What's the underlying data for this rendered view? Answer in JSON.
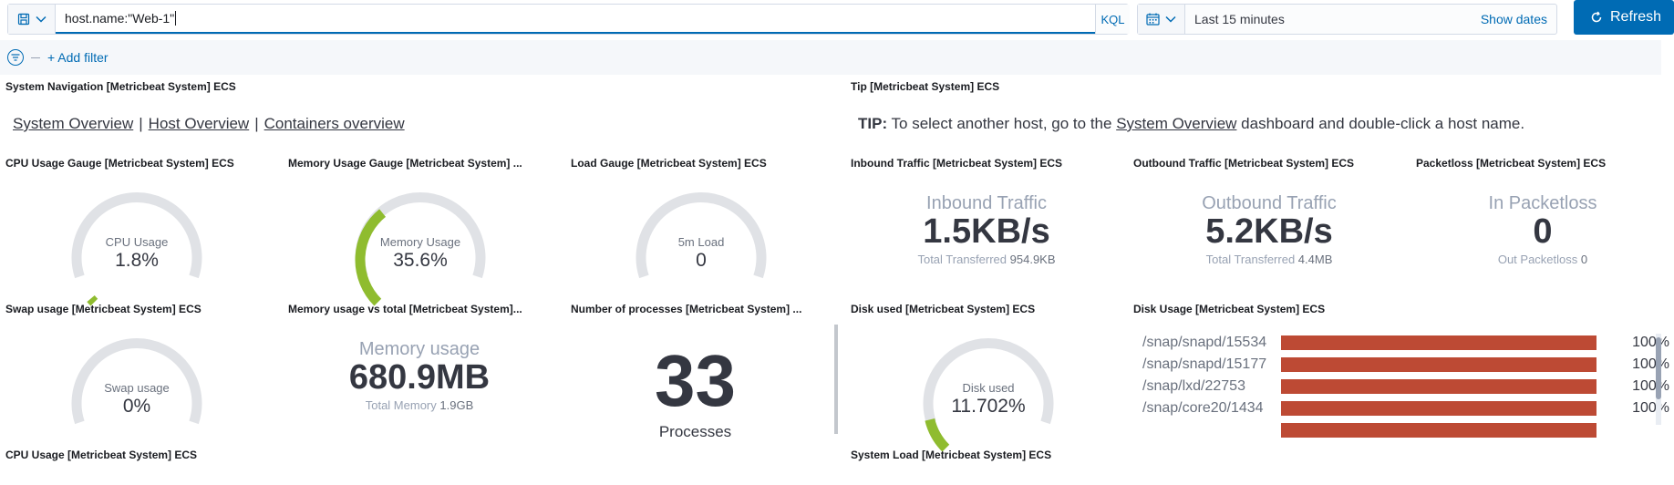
{
  "querybar": {
    "query": "host.name:\"Web-1\"",
    "language_label": "KQL",
    "date_range": "Last 15 minutes",
    "show_dates_label": "Show dates",
    "refresh_label": "Refresh"
  },
  "filterbar": {
    "add_filter_label": "+ Add filter"
  },
  "panels": {
    "nav": {
      "title": "System Navigation [Metricbeat System] ECS",
      "links": [
        "System Overview",
        "Host Overview",
        "Containers overview"
      ],
      "separator": "|"
    },
    "tip": {
      "title": "Tip [Metricbeat System] ECS",
      "prefix": "TIP:",
      "text_before": " To select another host, go to the ",
      "link": "System Overview",
      "text_after": " dashboard and double-click a host name."
    },
    "cpu_gauge": {
      "title": "CPU Usage Gauge [Metricbeat System] ECS",
      "label": "CPU Usage",
      "value": "1.8%",
      "fraction": 0.018
    },
    "mem_gauge": {
      "title": "Memory Usage Gauge [Metricbeat System] ...",
      "label": "Memory Usage",
      "value": "35.6%",
      "fraction": 0.356
    },
    "load_gauge": {
      "title": "Load Gauge [Metricbeat System] ECS",
      "label": "5m Load",
      "value": "0",
      "fraction": 0
    },
    "inbound": {
      "title": "Inbound Traffic [Metricbeat System] ECS",
      "label": "Inbound Traffic",
      "value": "1.5KB/s",
      "sub_label": "Total Transferred",
      "sub_value": "954.9KB"
    },
    "outbound": {
      "title": "Outbound Traffic [Metricbeat System] ECS",
      "label": "Outbound Traffic",
      "value": "5.2KB/s",
      "sub_label": "Total Transferred",
      "sub_value": "4.4MB"
    },
    "packetloss": {
      "title": "Packetloss [Metricbeat System] ECS",
      "label": "In Packetloss",
      "value": "0",
      "sub_label": "Out Packetloss",
      "sub_value": "0"
    },
    "swap_gauge": {
      "title": "Swap usage [Metricbeat System] ECS",
      "label": "Swap usage",
      "value": "0%",
      "fraction": 0
    },
    "mem_total": {
      "title": "Memory usage vs total [Metricbeat System]...",
      "label": "Memory usage",
      "value": "680.9MB",
      "sub_label": "Total Memory",
      "sub_value": "1.9GB"
    },
    "processes": {
      "title": "Number of processes [Metricbeat System] ...",
      "value": "33",
      "label": "Processes"
    },
    "disk_used": {
      "title": "Disk used [Metricbeat System] ECS",
      "label": "Disk used",
      "value": "11.702%",
      "fraction": 0.117
    },
    "disk_usage": {
      "title": "Disk Usage [Metricbeat System] ECS",
      "rows": [
        {
          "path": "/snap/snapd/15534",
          "pct": "100%",
          "fraction": 1.0
        },
        {
          "path": "/snap/snapd/15177",
          "pct": "100%",
          "fraction": 1.0
        },
        {
          "path": "/snap/lxd/22753",
          "pct": "100%",
          "fraction": 1.0
        },
        {
          "path": "/snap/core20/1434",
          "pct": "100%",
          "fraction": 1.0
        }
      ]
    },
    "cpu_usage": {
      "title": "CPU Usage [Metricbeat System] ECS"
    },
    "system_load": {
      "title": "System Load [Metricbeat System] ECS"
    }
  },
  "colors": {
    "accent": "#006bb4",
    "gauge_track": "#e0e2e6",
    "gauge_fill": "#8fbc2f",
    "disk_bar": "#bd4a34"
  }
}
